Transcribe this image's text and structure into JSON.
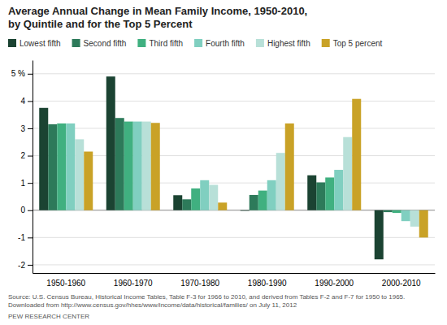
{
  "chart_data": {
    "type": "bar",
    "title": "Average Annual Change in Mean Family Income, 1950-2010,",
    "subtitle": "by Quintile and for the Top 5 Percent",
    "categories": [
      "1950-1960",
      "1960-1970",
      "1970-1980",
      "1980-1990",
      "1990-2000",
      "2000-2010"
    ],
    "series": [
      {
        "name": "Lowest fifth",
        "color": "#1b4332",
        "values": [
          3.75,
          4.9,
          0.55,
          -0.02,
          1.28,
          -1.8
        ]
      },
      {
        "name": "Second fifth",
        "color": "#2d7a5a",
        "values": [
          3.15,
          3.38,
          0.4,
          0.56,
          1.02,
          -0.07
        ]
      },
      {
        "name": "Third fifth",
        "color": "#40b080",
        "values": [
          3.18,
          3.25,
          0.8,
          0.72,
          1.2,
          -0.1
        ]
      },
      {
        "name": "Fourth fifth",
        "color": "#80cfc0",
        "values": [
          3.18,
          3.25,
          1.1,
          1.1,
          1.48,
          -0.4
        ]
      },
      {
        "name": "Highest fifth",
        "color": "#b8e0d8",
        "values": [
          2.6,
          3.25,
          0.93,
          2.1,
          2.68,
          -0.6
        ]
      },
      {
        "name": "Top 5 percent",
        "color": "#c9a227",
        "values": [
          2.15,
          3.2,
          0.28,
          3.18,
          4.08,
          -1.0
        ]
      }
    ],
    "ylim": [
      -2.3,
      5.5
    ],
    "yticks": [
      -2,
      -1,
      0,
      1,
      2,
      3,
      4,
      {
        "value": 5,
        "label": "5 %"
      }
    ],
    "grid": true,
    "legend": "top",
    "annotations": [
      "Source: U.S. Census Bureau, Historical Income Tables, Table F-3 for 1966 to 2010, and derived from Tables F-2 and F-7 for 1950 to 1965. Downloaded from http://www.census.gov/hhes/www/income/data/historical/families/ on July 11, 2012",
      "PEW RESEARCH CENTER"
    ]
  }
}
